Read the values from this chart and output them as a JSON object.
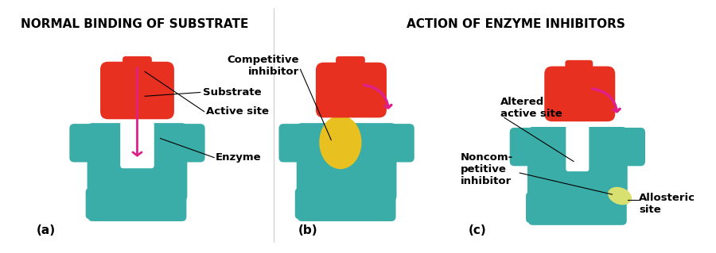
{
  "title_left": "NORMAL BINDING OF SUBSTRATE",
  "title_right": "ACTION OF ENZYME INHIBITORS",
  "title_fontsize": 11,
  "label_fontsize": 9.5,
  "bg_color": "#ffffff",
  "teal": "#3aada8",
  "teal_dark": "#2a8a85",
  "red": "#e83020",
  "red_dark": "#c02010",
  "yellow": "#e8c020",
  "yellow_light": "#f0d060",
  "pink": "#e0208a",
  "label_a": "(a)",
  "label_b": "(b)",
  "label_c": "(c)",
  "panel_labels": [
    "Substrate",
    "Active site",
    "Enzyme",
    "Competitive\ninhibitor",
    "Altered\nactive site",
    "Noncom-\npetitive\ninhibitor",
    "Allosteric\nsite"
  ]
}
